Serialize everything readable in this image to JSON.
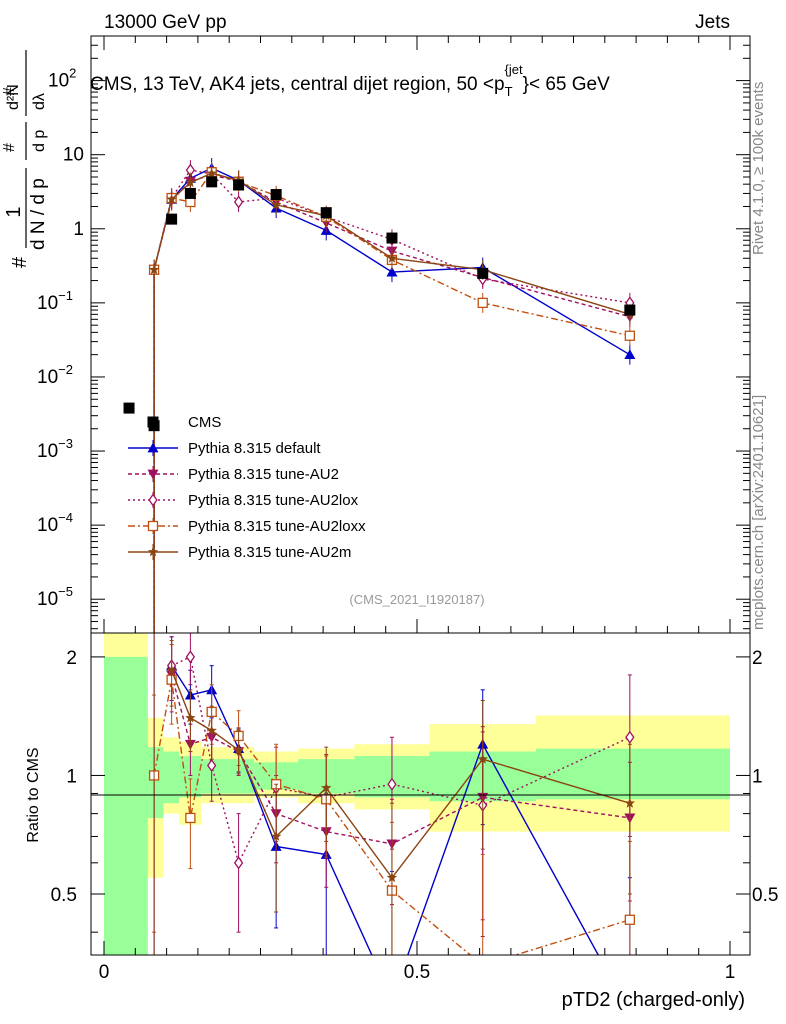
{
  "header": {
    "left": "13000 GeV pp",
    "right": "Jets",
    "rivet_label": "Rivet 4.1.0, ≥ 100k events",
    "mcplots_label": "mcplots.cern.ch [arXiv:2401.10621]",
    "analysis_id": "(CMS_2021_I1920187)"
  },
  "chart_data": {
    "type": "scatter",
    "title": "CMS, 13 TeV, AK4 jets, central dijet region, 50 <p_T^{jet}< 65 GeV",
    "title_parts": {
      "main": "CMS, 13 TeV, AK4 jets, central dijet region, 50 <p",
      "sub": "T",
      "sup": "{jet",
      "tail": "}< 65 GeV"
    },
    "ylabel_parts": {
      "numerator_top": "1",
      "denominator": "d N / d p",
      "sub": "T",
      "hash": "#",
      "d2N": "d²N",
      "dpt_dl": "d p",
      "lambda": "dλ"
    },
    "xlabel": "pTD2 (charged-only)",
    "ratio_ylabel": "Ratio to CMS",
    "xlim": [
      0,
      1
    ],
    "ylim": [
      3.5e-06,
      400
    ],
    "ratio_ylim": [
      0.35,
      2.3
    ],
    "x_ticks": [
      {
        "v": 0,
        "label": "0"
      },
      {
        "v": 0.5,
        "label": "0.5"
      },
      {
        "v": 1,
        "label": "1"
      }
    ],
    "y_ticks": [
      {
        "v": 100,
        "base": "10",
        "exp": "2"
      },
      {
        "v": 10,
        "base": "10",
        "exp": ""
      },
      {
        "v": 1,
        "base": "1",
        "exp": ""
      },
      {
        "v": 0.1,
        "base": "10",
        "exp": "−1"
      },
      {
        "v": 0.01,
        "base": "10",
        "exp": "−2"
      },
      {
        "v": 0.001,
        "base": "10",
        "exp": "−3"
      },
      {
        "v": 0.0001,
        "base": "10",
        "exp": "−4"
      },
      {
        "v": 1e-05,
        "base": "10",
        "exp": "−5"
      }
    ],
    "ratio_ticks": [
      {
        "v": 2,
        "label": "2"
      },
      {
        "v": 1,
        "label": "1"
      },
      {
        "v": 0.5,
        "label": "0.5"
      }
    ],
    "data": {
      "name": "CMS",
      "x": [
        0.04,
        0.08,
        0.108,
        0.138,
        0.172,
        0.215,
        0.275,
        0.355,
        0.46,
        0.605,
        0.84
      ],
      "y": [
        0.0038,
        0.0022,
        1.35,
        3.0,
        4.3,
        3.9,
        2.9,
        1.65,
        0.75,
        0.25,
        0.08
      ],
      "band_edges": [
        0.0,
        0.07,
        0.095,
        0.12,
        0.155,
        0.19,
        0.24,
        0.31,
        0.4,
        0.52,
        0.69,
        1.0
      ],
      "band_green": [
        [
          0.0,
          2.0
        ],
        [
          0.78,
          1.18
        ],
        [
          0.85,
          1.15
        ],
        [
          0.88,
          1.12
        ],
        [
          0.9,
          1.1
        ],
        [
          0.9,
          1.1
        ],
        [
          0.92,
          1.08
        ],
        [
          0.9,
          1.1
        ],
        [
          0.88,
          1.12
        ],
        [
          0.86,
          1.15
        ],
        [
          0.87,
          1.17
        ]
      ],
      "band_yellow": [
        [
          0.0,
          2.6
        ],
        [
          0.55,
          1.4
        ],
        [
          0.8,
          1.25
        ],
        [
          0.75,
          1.22
        ],
        [
          0.85,
          1.18
        ],
        [
          0.85,
          1.18
        ],
        [
          0.88,
          1.15
        ],
        [
          0.85,
          1.17
        ],
        [
          0.82,
          1.2
        ],
        [
          0.72,
          1.35
        ],
        [
          0.72,
          1.42
        ]
      ]
    },
    "series": [
      {
        "name": "Pythia 8.315 default",
        "color": "#0000cc",
        "dash": "",
        "marker": "triangle-up",
        "x": [
          0.08,
          0.108,
          0.138,
          0.172,
          0.215,
          0.275,
          0.355,
          0.46,
          0.605,
          0.84
        ],
        "y": [
          0.28,
          2.5,
          4.8,
          6.6,
          4.5,
          1.9,
          0.95,
          0.26,
          0.3,
          0.02
        ],
        "ratio": [
          null,
          1.9,
          1.6,
          1.65,
          1.17,
          0.66,
          0.63,
          0.27,
          1.2,
          0.25
        ],
        "ratio_err": [
          0,
          0.35,
          0.25,
          0.25,
          0.15,
          0.25,
          0.3,
          0.3,
          0.45,
          0.3
        ]
      },
      {
        "name": "Pythia 8.315 tune-AU2",
        "color": "#a01060",
        "dash": "4,3",
        "marker": "triangle-down",
        "x": [
          0.08,
          0.108,
          0.138,
          0.172,
          0.215,
          0.275,
          0.355,
          0.46,
          0.605,
          0.84
        ],
        "y": [
          0.28,
          2.4,
          4.4,
          5.3,
          4.4,
          2.3,
          1.2,
          0.5,
          0.22,
          0.065
        ],
        "ratio": [
          null,
          1.8,
          1.2,
          1.25,
          1.15,
          0.8,
          0.72,
          0.67,
          0.88,
          0.78
        ],
        "ratio_err": [
          0,
          0.35,
          0.2,
          0.2,
          0.15,
          0.2,
          0.2,
          0.2,
          0.45,
          0.3
        ]
      },
      {
        "name": "Pythia 8.315 tune-AU2lox",
        "color": "#a01060",
        "dash": "2,3",
        "marker": "diamond",
        "x": [
          0.08,
          0.108,
          0.138,
          0.172,
          0.215,
          0.275,
          0.355,
          0.46,
          0.605,
          0.84
        ],
        "y": [
          0.28,
          2.6,
          6.2,
          5.5,
          2.3,
          2.6,
          1.45,
          0.72,
          0.21,
          0.1
        ],
        "ratio": [
          null,
          1.9,
          2.0,
          1.06,
          0.6,
          0.93,
          0.88,
          0.95,
          0.84,
          1.25
        ],
        "ratio_err": [
          0,
          0.35,
          0.3,
          0.2,
          0.2,
          0.25,
          0.25,
          0.3,
          0.45,
          0.55
        ]
      },
      {
        "name": "Pythia 8.315 tune-AU2loxx",
        "color": "#c05010",
        "dash": "7,3,2,3",
        "marker": "square-open",
        "x": [
          0.08,
          0.108,
          0.138,
          0.172,
          0.215,
          0.275,
          0.355,
          0.46,
          0.605,
          0.84
        ],
        "y": [
          0.28,
          2.6,
          2.3,
          5.8,
          4.3,
          2.8,
          1.45,
          0.38,
          0.1,
          0.036
        ],
        "ratio": [
          1.0,
          1.75,
          0.78,
          1.45,
          1.26,
          0.95,
          0.87,
          0.51,
          0.33,
          0.43
        ],
        "ratio_err": [
          0.6,
          0.4,
          0.2,
          0.25,
          0.2,
          0.25,
          0.25,
          0.25,
          0.3,
          0.25
        ]
      },
      {
        "name": "Pythia 8.315 tune-AU2m",
        "color": "#8b4513",
        "dash": "",
        "marker": "star",
        "x": [
          0.08,
          0.108,
          0.138,
          0.172,
          0.215,
          0.275,
          0.355,
          0.46,
          0.605,
          0.84
        ],
        "y": [
          0.28,
          2.5,
          4.2,
          5.6,
          4.5,
          2.1,
          1.5,
          0.4,
          0.28,
          0.07
        ],
        "ratio": [
          null,
          1.85,
          1.4,
          1.3,
          1.16,
          0.7,
          0.93,
          0.55,
          1.1,
          0.85
        ],
        "ratio_err": [
          0,
          0.35,
          0.25,
          0.2,
          0.15,
          0.25,
          0.25,
          0.3,
          0.45,
          0.35
        ]
      }
    ]
  }
}
